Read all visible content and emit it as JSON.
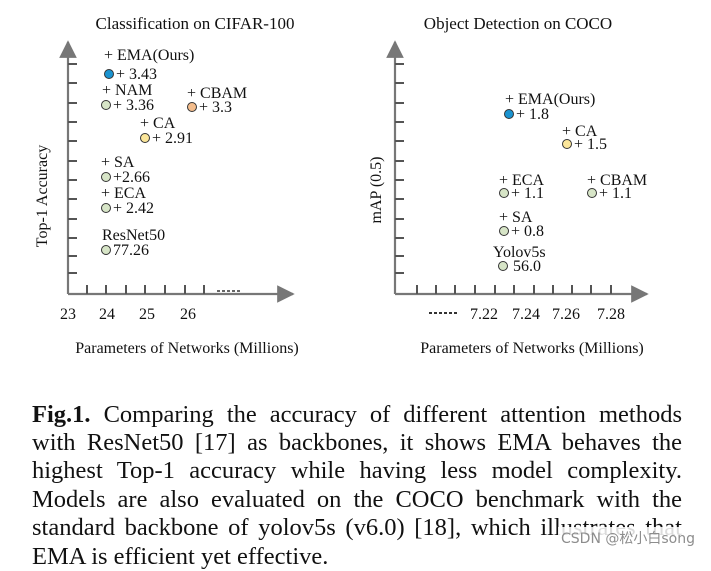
{
  "chart_data": [
    {
      "type": "scatter",
      "title": "Classification on CIFAR-100",
      "xlabel": "Parameters of Networks (Millions)",
      "ylabel": "Top-1 Accuracy",
      "x_ticks": [
        "23",
        "24",
        "25",
        "26"
      ],
      "xlim": [
        23,
        27.2
      ],
      "ylim": [
        76.7,
        81.75
      ],
      "points": [
        {
          "name": "EMA(Ours)",
          "label": "+ EMA(Ours)",
          "value_text": "+ 3.43",
          "x": 24.0,
          "y": 80.69,
          "color": "#1a93d0"
        },
        {
          "name": "NAM",
          "label": "+ NAM",
          "value_text": "+ 3.36",
          "x": 24.0,
          "y": 80.62,
          "color": "#d7e5c7"
        },
        {
          "name": "CBAM",
          "label": "+ CBAM",
          "value_text": "+ 3.3",
          "x": 26.2,
          "y": 80.56,
          "color": "#f4bd8c"
        },
        {
          "name": "CA",
          "label": "+ CA",
          "value_text": "+ 2.91",
          "x": 25.0,
          "y": 80.17,
          "color": "#fbe69a"
        },
        {
          "name": "SA",
          "label": "+ SA",
          "value_text": "+2.66",
          "x": 24.0,
          "y": 79.92,
          "color": "#d7e5c7"
        },
        {
          "name": "ECA",
          "label": "+ ECA",
          "value_text": "+ 2.42",
          "x": 24.0,
          "y": 79.68,
          "color": "#d7e5c7"
        },
        {
          "name": "ResNet50",
          "label": "ResNet50",
          "value_text": "77.26",
          "x": 24.0,
          "y": 77.26,
          "color": "#d7e5c7"
        }
      ]
    },
    {
      "type": "scatter",
      "title": "Object Detection on COCO",
      "xlabel": "Parameters of Networks (Millions)",
      "ylabel": "mAP (0.5)",
      "x_ticks": [
        "7.22",
        "7.24",
        "7.26",
        "7.28"
      ],
      "xlim": [
        7.185,
        7.3
      ],
      "ylim": [
        55.9,
        58.5
      ],
      "points": [
        {
          "name": "EMA(Ours)",
          "label": "+ EMA(Ours)",
          "value_text": "+ 1.8",
          "x": 7.232,
          "y": 57.8,
          "color": "#1a93d0"
        },
        {
          "name": "CA",
          "label": "+ CA",
          "value_text": "+ 1.5",
          "x": 7.26,
          "y": 57.5,
          "color": "#fbe69a"
        },
        {
          "name": "ECA",
          "label": "+ ECA",
          "value_text": "+ 1.1",
          "x": 7.232,
          "y": 57.1,
          "color": "#d7e5c7"
        },
        {
          "name": "CBAM",
          "label": "+ CBAM",
          "value_text": "+ 1.1",
          "x": 7.275,
          "y": 57.1,
          "color": "#d7e5c7"
        },
        {
          "name": "SA",
          "label": "+ SA",
          "value_text": "+ 0.8",
          "x": 7.232,
          "y": 56.8,
          "color": "#d7e5c7"
        },
        {
          "name": "Yolov5s",
          "label": "Yolov5s",
          "value_text": "56.0",
          "x": 7.232,
          "y": 56.0,
          "color": "#d7e5c7"
        }
      ]
    }
  ],
  "caption": {
    "label": "Fig.1.",
    "text": "Comparing the accuracy of different attention methods with ResNet50 [17] as backbones, it shows EMA behaves the highest Top-1 accuracy while having less model complexity. Models are also evaluated on the COCO benchmark with the standard backbone of yolov5s (v6.0) [18], which illustrates that EMA is efficient yet effective."
  },
  "watermark": "CSDN @松小白song"
}
